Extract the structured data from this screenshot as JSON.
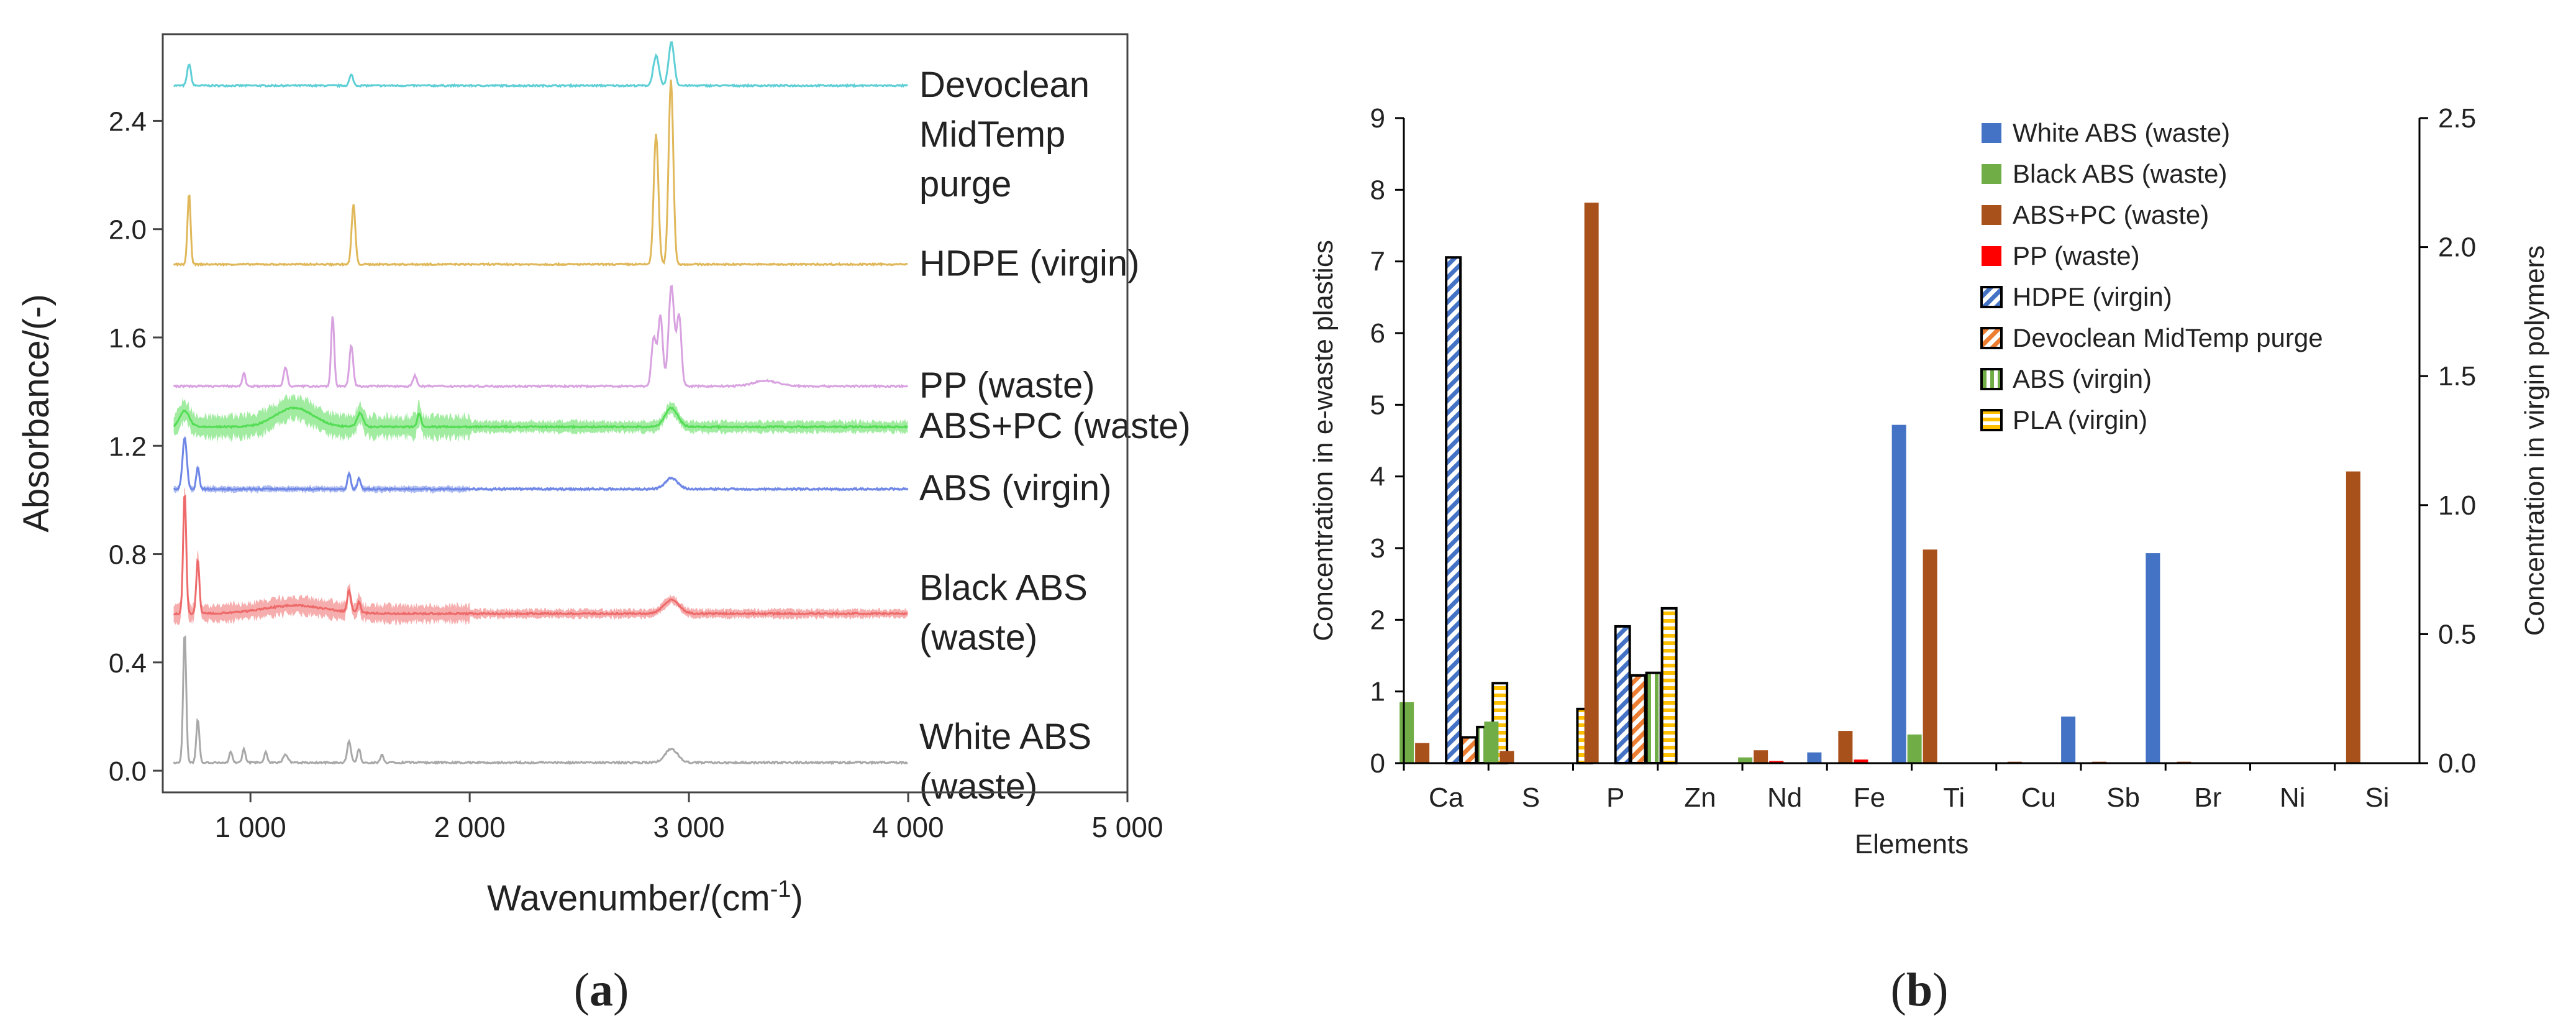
{
  "chart_data": [
    {
      "panel": "(a)",
      "type": "line",
      "title": "",
      "xlabel": "Wavenumber/(cm",
      "xlabel_sup": "-1",
      "xlabel_tail": ")",
      "ylabel": "Absorbance/(-)",
      "xlim": [
        600,
        5000
      ],
      "ylim": [
        -0.08,
        2.72
      ],
      "xticks": [
        1000,
        2000,
        3000,
        4000,
        5000
      ],
      "xtick_labels": [
        "1 000",
        "2 000",
        "3 000",
        "4 000",
        "5 000"
      ],
      "yticks": [
        0.0,
        0.4,
        0.8,
        1.2,
        1.6,
        2.0,
        2.4
      ],
      "ytick_labels": [
        "0.0",
        "0.4",
        "0.8",
        "1.2",
        "1.6",
        "2.0",
        "2.4"
      ],
      "grid": false,
      "series": [
        {
          "name": "Devoclean MidTemp purge",
          "label_lines": [
            "Devoclean",
            "MidTemp",
            "purge"
          ],
          "color": "#5fcfd6",
          "baseline": 2.53,
          "band": 0.0,
          "peaks": [
            [
              720,
              0.08,
              12
            ],
            [
              1460,
              0.04,
              12
            ],
            [
              2850,
              0.11,
              18
            ],
            [
              2920,
              0.16,
              18
            ]
          ]
        },
        {
          "name": "HDPE (virgin)",
          "label_lines": [
            "HDPE (virgin)"
          ],
          "color": "#e0b85a",
          "baseline": 1.87,
          "band": 0.0,
          "peaks": [
            [
              720,
              0.26,
              10
            ],
            [
              1470,
              0.22,
              12
            ],
            [
              2850,
              0.48,
              15
            ],
            [
              2918,
              0.68,
              15
            ]
          ]
        },
        {
          "name": "PP (waste)",
          "label_lines": [
            "PP (waste)"
          ],
          "color": "#d8a2e0",
          "baseline": 1.42,
          "band": 0.0,
          "peaks": [
            [
              970,
              0.05,
              10
            ],
            [
              1160,
              0.07,
              12
            ],
            [
              1375,
              0.26,
              10
            ],
            [
              1460,
              0.15,
              12
            ],
            [
              1750,
              0.04,
              12
            ],
            [
              2840,
              0.18,
              15
            ],
            [
              2870,
              0.26,
              15
            ],
            [
              2920,
              0.37,
              18
            ],
            [
              2955,
              0.26,
              15
            ],
            [
              3350,
              0.02,
              80
            ]
          ]
        },
        {
          "name": "ABS+PC (waste)",
          "label_lines": [
            "ABS+PC (waste)"
          ],
          "color": "#55dd55",
          "baseline": 1.27,
          "band": 0.04,
          "peaks": [
            [
              700,
              0.06,
              30
            ],
            [
              1200,
              0.07,
              120
            ],
            [
              1500,
              0.05,
              20
            ],
            [
              1770,
              0.05,
              12
            ],
            [
              2920,
              0.07,
              40
            ]
          ]
        },
        {
          "name": "ABS (virgin)",
          "label_lines": [
            "ABS (virgin)"
          ],
          "color": "#6e86e6",
          "baseline": 1.04,
          "band": 0.01,
          "peaks": [
            [
              700,
              0.19,
              14
            ],
            [
              760,
              0.08,
              10
            ],
            [
              1450,
              0.06,
              10
            ],
            [
              1495,
              0.04,
              10
            ],
            [
              2920,
              0.04,
              40
            ]
          ]
        },
        {
          "name": "Black ABS (waste)",
          "label_lines": [
            "Black ABS",
            "(waste)"
          ],
          "color": "#ee6a6a",
          "baseline": 0.58,
          "band": 0.03,
          "peaks": [
            [
              700,
              0.45,
              10
            ],
            [
              760,
              0.2,
              10
            ],
            [
              1200,
              0.03,
              200
            ],
            [
              1450,
              0.08,
              12
            ],
            [
              1495,
              0.04,
              10
            ],
            [
              2920,
              0.05,
              50
            ]
          ]
        },
        {
          "name": "White ABS (waste)",
          "label_lines": [
            "White ABS",
            "(waste)"
          ],
          "color": "#a8a8a8",
          "baseline": 0.03,
          "band": 0.0,
          "peaks": [
            [
              700,
              0.48,
              10
            ],
            [
              760,
              0.16,
              10
            ],
            [
              910,
              0.04,
              10
            ],
            [
              970,
              0.05,
              10
            ],
            [
              1070,
              0.04,
              10
            ],
            [
              1160,
              0.03,
              15
            ],
            [
              1450,
              0.08,
              12
            ],
            [
              1495,
              0.05,
              10
            ],
            [
              1600,
              0.03,
              10
            ],
            [
              2920,
              0.05,
              40
            ]
          ]
        }
      ]
    },
    {
      "panel": "(b)",
      "type": "bar",
      "title": "",
      "xlabel": "Elements",
      "ylabel": "Concentration in e-waste plastics",
      "ylabel_right": "Concentration in virgin polymers",
      "ylim": [
        0,
        9
      ],
      "ylim_right": [
        0,
        2.5
      ],
      "yticks": [
        0,
        1,
        2,
        3,
        4,
        5,
        6,
        7,
        8,
        9
      ],
      "yticks_right": [
        0.0,
        0.5,
        1.0,
        1.5,
        2.0,
        2.5
      ],
      "ytick_labels_right": [
        "0.0",
        "0.5",
        "1.0",
        "1.5",
        "2.0",
        "2.5"
      ],
      "grid": false,
      "legend_position": "top-right",
      "categories": [
        "Ca",
        "S",
        "P",
        "Zn",
        "Nd",
        "Fe",
        "Ti",
        "Cu",
        "Sb",
        "Br",
        "Ni",
        "Si"
      ],
      "series": [
        {
          "name": "White ABS (waste)",
          "axis": "left",
          "color": "#4472c4",
          "pattern": "solid",
          "values": [
            0,
            0,
            0,
            0,
            0,
            0.15,
            4.72,
            0,
            0.65,
            2.93,
            0,
            0
          ]
        },
        {
          "name": "Black ABS (waste)",
          "axis": "left",
          "color": "#70ad47",
          "pattern": "solid",
          "values": [
            0.85,
            0.58,
            0,
            0,
            0.08,
            0,
            0.4,
            0,
            0,
            0,
            0,
            0
          ]
        },
        {
          "name": "ABS+PC (waste)",
          "axis": "left",
          "color": "#a9511a",
          "pattern": "solid",
          "values": [
            0.28,
            0.17,
            7.82,
            0,
            0.18,
            0.45,
            2.98,
            0.02,
            0.02,
            0.02,
            0,
            4.07
          ]
        },
        {
          "name": "PP (waste)",
          "axis": "left",
          "color": "#ff0000",
          "pattern": "solid",
          "values": [
            0,
            0,
            0,
            0,
            0.03,
            0.05,
            0,
            0,
            0,
            0,
            0,
            0
          ]
        },
        {
          "name": "HDPE (virgin)",
          "axis": "right",
          "color": "#4472c4",
          "pattern": "diag",
          "values": [
            1.96,
            0,
            0.53,
            0,
            0,
            0,
            0,
            0,
            0,
            0,
            0,
            0
          ]
        },
        {
          "name": "Devoclean MidTemp purge",
          "axis": "right",
          "color": "#ed7d31",
          "pattern": "diag",
          "values": [
            0.1,
            0,
            0.34,
            0,
            0,
            0,
            0,
            0,
            0,
            0,
            0,
            0
          ]
        },
        {
          "name": "ABS (virgin)",
          "axis": "right",
          "color": "#70ad47",
          "pattern": "vert",
          "values": [
            0.14,
            0,
            0.35,
            0,
            0,
            0,
            0,
            0,
            0,
            0,
            0,
            0
          ]
        },
        {
          "name": "PLA (virgin)",
          "axis": "right",
          "color": "#ffc000",
          "pattern": "horiz",
          "values": [
            0.31,
            0.21,
            0.6,
            0,
            0,
            0,
            0,
            0,
            0,
            0,
            0,
            0
          ]
        }
      ]
    }
  ]
}
